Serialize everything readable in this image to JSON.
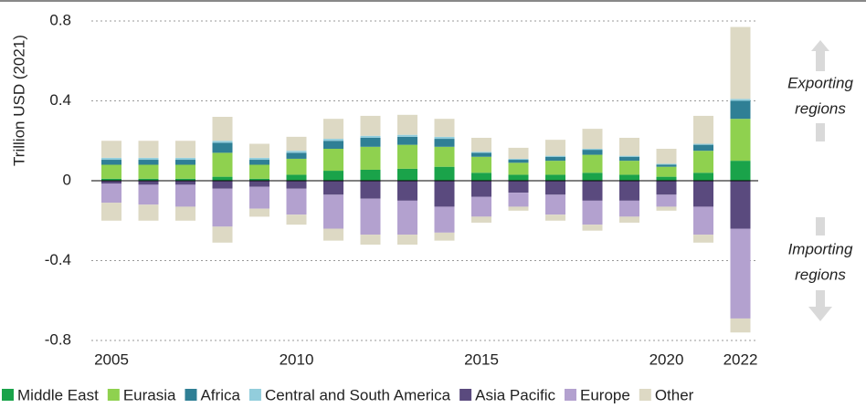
{
  "chart_data": {
    "type": "bar",
    "stacked": true,
    "y_label": "Trillion USD (2021)",
    "categories": [
      "2005",
      null,
      null,
      null,
      null,
      "2010",
      null,
      null,
      null,
      null,
      "2015",
      null,
      null,
      null,
      null,
      "2020",
      null,
      "2022"
    ],
    "ylim": [
      -0.8,
      0.8
    ],
    "yticks": [
      -0.8,
      -0.4,
      0,
      0.4,
      0.8
    ],
    "grid": true,
    "series": [
      {
        "name": "Middle East",
        "color": "#1aa34a",
        "values": [
          0.01,
          0.01,
          0.01,
          0.02,
          0.01,
          0.03,
          0.05,
          0.055,
          0.06,
          0.07,
          0.04,
          0.03,
          0.03,
          0.04,
          0.03,
          0.02,
          0.04,
          0.1
        ]
      },
      {
        "name": "Eurasia",
        "color": "#8fd14f",
        "values": [
          0.07,
          0.07,
          0.07,
          0.12,
          0.07,
          0.08,
          0.11,
          0.115,
          0.12,
          0.1,
          0.08,
          0.06,
          0.07,
          0.09,
          0.07,
          0.05,
          0.11,
          0.21
        ]
      },
      {
        "name": "Africa",
        "color": "#2f7f95",
        "values": [
          0.025,
          0.025,
          0.025,
          0.05,
          0.025,
          0.03,
          0.04,
          0.045,
          0.04,
          0.04,
          0.02,
          0.015,
          0.02,
          0.025,
          0.02,
          0.01,
          0.03,
          0.09
        ]
      },
      {
        "name": "Central and South America",
        "color": "#92cddc",
        "values": [
          0.01,
          0.01,
          0.01,
          0.01,
          0.01,
          0.01,
          0.01,
          0.01,
          0.01,
          0.01,
          0.005,
          0.005,
          0.005,
          0.005,
          0.005,
          0.005,
          0.005,
          0.01
        ]
      },
      {
        "name": "Asia Pacific",
        "color": "#5a4a7e",
        "values": [
          -0.015,
          -0.02,
          -0.02,
          -0.04,
          -0.03,
          -0.04,
          -0.07,
          -0.09,
          -0.1,
          -0.13,
          -0.08,
          -0.06,
          -0.07,
          -0.1,
          -0.1,
          -0.07,
          -0.13,
          -0.24
        ]
      },
      {
        "name": "Europe",
        "color": "#b3a1cf",
        "values": [
          -0.095,
          -0.1,
          -0.11,
          -0.19,
          -0.11,
          -0.13,
          -0.17,
          -0.18,
          -0.17,
          -0.13,
          -0.1,
          -0.07,
          -0.1,
          -0.12,
          -0.08,
          -0.06,
          -0.14,
          -0.45
        ]
      },
      {
        "name": "Other",
        "color": "#ddd9c4",
        "values": [
          0.085,
          0.085,
          0.085,
          0.12,
          0.07,
          0.07,
          0.1,
          0.1,
          0.1,
          0.09,
          0.07,
          0.055,
          0.08,
          0.1,
          0.09,
          0.075,
          0.14,
          0.36
        ],
        "import_values": [
          -0.09,
          -0.08,
          -0.07,
          -0.08,
          -0.04,
          -0.05,
          -0.06,
          -0.05,
          -0.05,
          -0.04,
          -0.03,
          -0.02,
          -0.03,
          -0.03,
          -0.03,
          -0.02,
          -0.04,
          -0.07
        ]
      }
    ],
    "annotations": [
      {
        "lines": [
          "Exporting",
          "regions"
        ]
      },
      {
        "lines": [
          "Importing",
          "regions"
        ]
      }
    ]
  }
}
